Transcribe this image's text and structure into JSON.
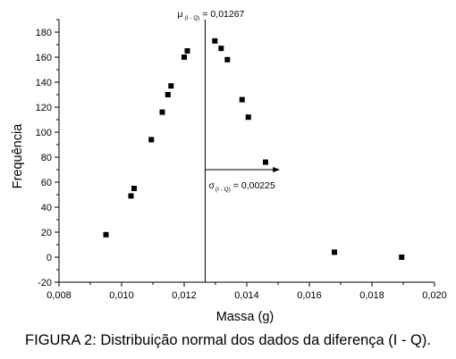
{
  "caption": "FIGURA 2: Distribuição normal dos dados da diferença (I - Q).",
  "chart_data": {
    "type": "scatter",
    "title": "",
    "xlabel": "Massa (g)",
    "ylabel": "Frequência",
    "xlim": [
      0.008,
      0.02
    ],
    "ylim": [
      -20,
      190
    ],
    "x_ticks": [
      "0,008",
      "0,010",
      "0,012",
      "0,014",
      "0,016",
      "0,018",
      "0,020"
    ],
    "y_ticks": [
      "-20",
      "0",
      "20",
      "40",
      "60",
      "80",
      "100",
      "120",
      "140",
      "160",
      "180"
    ],
    "x_tick_values": [
      0.008,
      0.01,
      0.012,
      0.014,
      0.016,
      0.018,
      0.02
    ],
    "y_tick_values": [
      -20,
      0,
      20,
      40,
      60,
      80,
      100,
      120,
      140,
      160,
      180
    ],
    "grid": false,
    "marker_color": "#000000",
    "series": [
      {
        "points": [
          {
            "x": 0.0095,
            "y": 18
          },
          {
            "x": 0.0103,
            "y": 49
          },
          {
            "x": 0.0104,
            "y": 55
          },
          {
            "x": 0.01095,
            "y": 94
          },
          {
            "x": 0.0113,
            "y": 116
          },
          {
            "x": 0.01148,
            "y": 130
          },
          {
            "x": 0.01158,
            "y": 137
          },
          {
            "x": 0.012,
            "y": 160
          },
          {
            "x": 0.0121,
            "y": 165
          },
          {
            "x": 0.01298,
            "y": 173
          },
          {
            "x": 0.01318,
            "y": 167
          },
          {
            "x": 0.01338,
            "y": 158
          },
          {
            "x": 0.01385,
            "y": 126
          },
          {
            "x": 0.01405,
            "y": 112
          },
          {
            "x": 0.0146,
            "y": 76
          },
          {
            "x": 0.0168,
            "y": 4
          },
          {
            "x": 0.01895,
            "y": 0
          }
        ]
      }
    ],
    "annotations": {
      "mean": {
        "symbol": "μ",
        "subscript": "(I - Q)",
        "text": " = 0,01267",
        "x": 0.01267
      },
      "sigma": {
        "symbol": "σ",
        "subscript": "(I - Q)",
        "text": " = 0,00225",
        "from_x": 0.01267,
        "to_x": 0.01492,
        "y": 70
      }
    }
  }
}
